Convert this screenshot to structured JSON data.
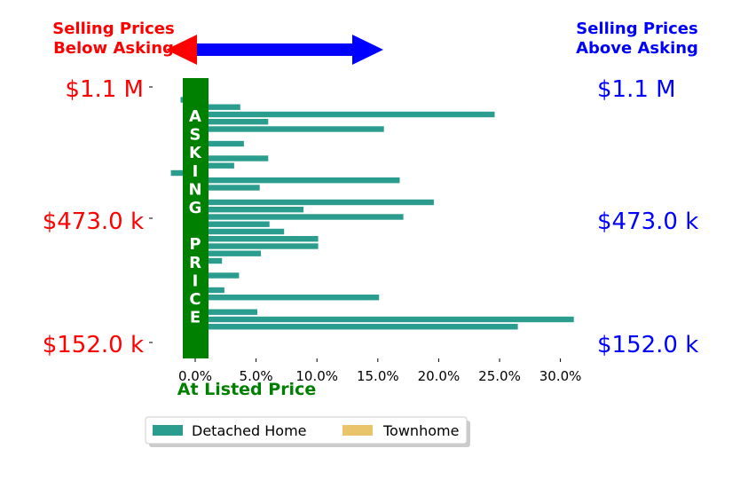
{
  "chart_data": {
    "type": "bar",
    "orientation": "horizontal",
    "annotations": {
      "left_title": [
        "Selling Prices",
        "Below Asking"
      ],
      "right_title": [
        "Selling Prices",
        "Above Asking"
      ],
      "asking_price_letters": [
        "A",
        "S",
        "K",
        "I",
        "N",
        "G",
        "",
        "P",
        "R",
        "I",
        "C",
        "E"
      ],
      "at_listed_price": "At Listed Price"
    },
    "y_ticks_left": [
      "$1.1 M",
      "$473.0 k",
      "$152.0 k"
    ],
    "y_ticks_right": [
      "$1.1 M",
      "$473.0 k",
      "$152.0 k"
    ],
    "x_ticks": [
      "0.0%",
      "5.0%",
      "10.0%",
      "15.0%",
      "20.0%",
      "25.0%",
      "30.0%"
    ],
    "xlim": [
      -0.035,
      0.325
    ],
    "x_tick_values": [
      0.0,
      0.05,
      0.1,
      0.15,
      0.2,
      0.25,
      0.3
    ],
    "legend_position": "bottom-center",
    "series": [
      {
        "name": "Detached Home",
        "color": "#2a9d8f",
        "values": [
          0.004,
          -0.012,
          0.037,
          0.246,
          0.06,
          0.155,
          0.005,
          0.04,
          0.002,
          0.06,
          0.032,
          -0.02,
          0.168,
          0.053,
          0.003,
          0.196,
          0.089,
          0.171,
          0.061,
          0.073,
          0.101,
          0.101,
          0.054,
          0.022,
          0.008,
          0.036,
          0.002,
          0.024,
          0.151,
          0.008,
          0.051,
          0.311,
          0.265
        ]
      },
      {
        "name": "Townhome",
        "color": "#e9c46a",
        "values": [
          0.003
        ]
      }
    ]
  }
}
